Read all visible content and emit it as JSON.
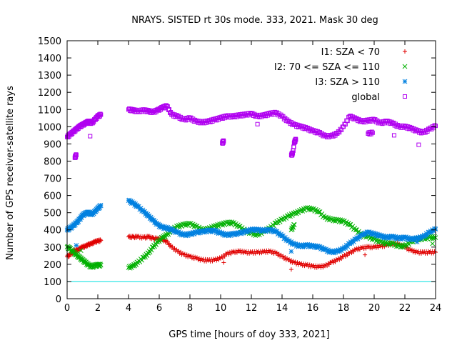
{
  "chart_data": {
    "type": "scatter",
    "title": "NRAYS. SISTED rt 30s mode. 333, 2021. Mask 30 deg",
    "xlabel": "GPS time [hours of doy 333, 2021]",
    "ylabel": "Number of GPS receiver-satellite rays",
    "xlim": [
      0,
      24
    ],
    "ylim": [
      0,
      1500
    ],
    "xticks": [
      0,
      2,
      4,
      6,
      8,
      10,
      12,
      14,
      16,
      18,
      20,
      22,
      24
    ],
    "yticks": [
      0,
      100,
      200,
      300,
      400,
      500,
      600,
      700,
      800,
      900,
      1000,
      1100,
      1200,
      1300,
      1400,
      1500
    ],
    "legend_position": "top-right",
    "reference_line": {
      "y": 100,
      "color": "#00e0e0"
    },
    "series": [
      {
        "name": "I1: SZA < 70",
        "marker": "plus",
        "color": "#e00000",
        "points": [
          [
            0.0,
            245
          ],
          [
            0.2,
            255
          ],
          [
            0.4,
            275
          ],
          [
            0.6,
            280
          ],
          [
            0.8,
            290
          ],
          [
            1.0,
            300
          ],
          [
            1.2,
            305
          ],
          [
            1.4,
            315
          ],
          [
            1.6,
            320
          ],
          [
            1.8,
            330
          ],
          [
            2.0,
            335
          ],
          [
            2.2,
            338
          ],
          [
            4.0,
            360
          ],
          [
            4.3,
            358
          ],
          [
            4.6,
            360
          ],
          [
            5.0,
            355
          ],
          [
            5.3,
            360
          ],
          [
            5.6,
            350
          ],
          [
            5.9,
            348
          ],
          [
            6.2,
            345
          ],
          [
            6.5,
            330
          ],
          [
            6.8,
            300
          ],
          [
            7.2,
            275
          ],
          [
            7.6,
            255
          ],
          [
            8.0,
            245
          ],
          [
            8.4,
            235
          ],
          [
            8.8,
            225
          ],
          [
            9.2,
            222
          ],
          [
            9.6,
            225
          ],
          [
            10.0,
            235
          ],
          [
            10.4,
            260
          ],
          [
            10.8,
            270
          ],
          [
            11.2,
            275
          ],
          [
            11.6,
            270
          ],
          [
            12.0,
            268
          ],
          [
            12.4,
            270
          ],
          [
            12.8,
            272
          ],
          [
            13.2,
            275
          ],
          [
            13.6,
            265
          ],
          [
            14.0,
            245
          ],
          [
            14.4,
            225
          ],
          [
            14.8,
            210
          ],
          [
            15.2,
            200
          ],
          [
            15.6,
            195
          ],
          [
            16.0,
            188
          ],
          [
            16.4,
            185
          ],
          [
            16.8,
            190
          ],
          [
            17.2,
            210
          ],
          [
            17.6,
            225
          ],
          [
            18.0,
            245
          ],
          [
            18.4,
            265
          ],
          [
            18.8,
            285
          ],
          [
            19.2,
            295
          ],
          [
            19.6,
            300
          ],
          [
            20.0,
            300
          ],
          [
            20.4,
            305
          ],
          [
            20.8,
            310
          ],
          [
            21.2,
            320
          ],
          [
            21.6,
            315
          ],
          [
            22.0,
            300
          ],
          [
            22.4,
            280
          ],
          [
            22.8,
            270
          ],
          [
            23.2,
            268
          ],
          [
            23.6,
            270
          ],
          [
            24.0,
            270
          ],
          [
            10.2,
            210
          ],
          [
            14.6,
            170
          ],
          [
            19.4,
            255
          ],
          [
            21.5,
            345
          ]
        ]
      },
      {
        "name": "I2: 70 <= SZA <= 110",
        "marker": "cross",
        "color": "#00b000",
        "points": [
          [
            0.0,
            300
          ],
          [
            0.2,
            290
          ],
          [
            0.4,
            270
          ],
          [
            0.6,
            255
          ],
          [
            0.8,
            240
          ],
          [
            1.0,
            225
          ],
          [
            1.2,
            210
          ],
          [
            1.4,
            195
          ],
          [
            1.6,
            185
          ],
          [
            1.8,
            192
          ],
          [
            2.0,
            195
          ],
          [
            2.2,
            195
          ],
          [
            4.0,
            180
          ],
          [
            4.3,
            190
          ],
          [
            4.6,
            210
          ],
          [
            5.0,
            240
          ],
          [
            5.3,
            265
          ],
          [
            5.6,
            300
          ],
          [
            5.9,
            330
          ],
          [
            6.2,
            355
          ],
          [
            6.5,
            370
          ],
          [
            6.8,
            400
          ],
          [
            7.2,
            420
          ],
          [
            7.6,
            430
          ],
          [
            8.0,
            435
          ],
          [
            8.4,
            420
          ],
          [
            8.8,
            400
          ],
          [
            9.2,
            405
          ],
          [
            9.6,
            420
          ],
          [
            10.0,
            430
          ],
          [
            10.4,
            440
          ],
          [
            10.8,
            440
          ],
          [
            11.2,
            420
          ],
          [
            11.6,
            395
          ],
          [
            12.0,
            380
          ],
          [
            12.4,
            370
          ],
          [
            12.8,
            390
          ],
          [
            13.2,
            410
          ],
          [
            13.6,
            440
          ],
          [
            14.0,
            460
          ],
          [
            14.4,
            480
          ],
          [
            14.8,
            495
          ],
          [
            15.2,
            510
          ],
          [
            15.6,
            525
          ],
          [
            16.0,
            520
          ],
          [
            16.4,
            505
          ],
          [
            16.8,
            470
          ],
          [
            17.2,
            460
          ],
          [
            17.6,
            455
          ],
          [
            18.0,
            450
          ],
          [
            18.4,
            430
          ],
          [
            18.8,
            400
          ],
          [
            19.2,
            370
          ],
          [
            19.6,
            360
          ],
          [
            20.0,
            345
          ],
          [
            20.4,
            330
          ],
          [
            20.8,
            320
          ],
          [
            21.2,
            320
          ],
          [
            21.6,
            305
          ],
          [
            22.0,
            305
          ],
          [
            22.4,
            330
          ],
          [
            22.8,
            345
          ],
          [
            23.2,
            350
          ],
          [
            23.6,
            355
          ],
          [
            24.0,
            355
          ],
          [
            0.9,
            280
          ],
          [
            14.6,
            400
          ],
          [
            14.8,
            430
          ],
          [
            23.8,
            320
          ]
        ]
      },
      {
        "name": "I3: SZA > 110",
        "marker": "star",
        "color": "#0080e0",
        "points": [
          [
            0.0,
            400
          ],
          [
            0.2,
            410
          ],
          [
            0.4,
            425
          ],
          [
            0.6,
            440
          ],
          [
            0.8,
            460
          ],
          [
            1.0,
            485
          ],
          [
            1.2,
            495
          ],
          [
            1.4,
            500
          ],
          [
            1.6,
            490
          ],
          [
            1.8,
            505
          ],
          [
            2.0,
            525
          ],
          [
            2.2,
            540
          ],
          [
            4.0,
            570
          ],
          [
            4.3,
            555
          ],
          [
            4.6,
            535
          ],
          [
            5.0,
            505
          ],
          [
            5.3,
            480
          ],
          [
            5.6,
            455
          ],
          [
            5.9,
            430
          ],
          [
            6.2,
            415
          ],
          [
            6.5,
            410
          ],
          [
            6.8,
            400
          ],
          [
            7.2,
            385
          ],
          [
            7.6,
            370
          ],
          [
            8.0,
            375
          ],
          [
            8.4,
            385
          ],
          [
            8.8,
            390
          ],
          [
            9.2,
            395
          ],
          [
            9.6,
            395
          ],
          [
            10.0,
            380
          ],
          [
            10.4,
            370
          ],
          [
            10.8,
            375
          ],
          [
            11.2,
            380
          ],
          [
            11.6,
            390
          ],
          [
            12.0,
            400
          ],
          [
            12.4,
            400
          ],
          [
            12.8,
            395
          ],
          [
            13.2,
            400
          ],
          [
            13.6,
            390
          ],
          [
            14.0,
            365
          ],
          [
            14.4,
            335
          ],
          [
            14.8,
            315
          ],
          [
            15.2,
            305
          ],
          [
            15.6,
            310
          ],
          [
            16.0,
            305
          ],
          [
            16.4,
            300
          ],
          [
            16.8,
            285
          ],
          [
            17.2,
            270
          ],
          [
            17.6,
            275
          ],
          [
            18.0,
            290
          ],
          [
            18.4,
            320
          ],
          [
            18.8,
            345
          ],
          [
            19.2,
            370
          ],
          [
            19.6,
            385
          ],
          [
            20.0,
            375
          ],
          [
            20.4,
            365
          ],
          [
            20.8,
            355
          ],
          [
            21.2,
            360
          ],
          [
            21.6,
            350
          ],
          [
            22.0,
            355
          ],
          [
            22.4,
            345
          ],
          [
            22.8,
            350
          ],
          [
            23.2,
            360
          ],
          [
            23.6,
            385
          ],
          [
            24.0,
            405
          ],
          [
            0.6,
            310
          ],
          [
            14.6,
            275
          ],
          [
            22.8,
            330
          ]
        ]
      },
      {
        "name": "global",
        "marker": "square",
        "color": "#b000f0",
        "points": [
          [
            0.0,
            940
          ],
          [
            0.2,
            955
          ],
          [
            0.4,
            970
          ],
          [
            0.6,
            985
          ],
          [
            0.8,
            1000
          ],
          [
            1.0,
            1010
          ],
          [
            1.2,
            1020
          ],
          [
            1.4,
            1030
          ],
          [
            1.6,
            1020
          ],
          [
            1.8,
            1040
          ],
          [
            2.0,
            1060
          ],
          [
            2.2,
            1070
          ],
          [
            4.0,
            1100
          ],
          [
            4.3,
            1095
          ],
          [
            4.6,
            1090
          ],
          [
            5.0,
            1095
          ],
          [
            5.3,
            1090
          ],
          [
            5.6,
            1085
          ],
          [
            5.9,
            1095
          ],
          [
            6.2,
            1110
          ],
          [
            6.5,
            1120
          ],
          [
            6.8,
            1070
          ],
          [
            7.2,
            1060
          ],
          [
            7.6,
            1040
          ],
          [
            8.0,
            1050
          ],
          [
            8.4,
            1030
          ],
          [
            8.8,
            1025
          ],
          [
            9.2,
            1030
          ],
          [
            9.6,
            1040
          ],
          [
            10.0,
            1050
          ],
          [
            10.4,
            1060
          ],
          [
            10.8,
            1060
          ],
          [
            11.2,
            1065
          ],
          [
            11.6,
            1070
          ],
          [
            12.0,
            1075
          ],
          [
            12.4,
            1060
          ],
          [
            12.8,
            1065
          ],
          [
            13.2,
            1075
          ],
          [
            13.6,
            1080
          ],
          [
            14.0,
            1060
          ],
          [
            14.4,
            1030
          ],
          [
            14.8,
            1010
          ],
          [
            15.2,
            1000
          ],
          [
            15.6,
            990
          ],
          [
            16.0,
            975
          ],
          [
            16.4,
            965
          ],
          [
            16.8,
            945
          ],
          [
            17.2,
            945
          ],
          [
            17.6,
            960
          ],
          [
            18.0,
            1000
          ],
          [
            18.4,
            1060
          ],
          [
            18.8,
            1045
          ],
          [
            19.2,
            1030
          ],
          [
            19.6,
            1035
          ],
          [
            20.0,
            1040
          ],
          [
            20.4,
            1020
          ],
          [
            20.8,
            1030
          ],
          [
            21.2,
            1020
          ],
          [
            21.6,
            1000
          ],
          [
            22.0,
            1000
          ],
          [
            22.4,
            990
          ],
          [
            22.8,
            975
          ],
          [
            23.2,
            965
          ],
          [
            23.6,
            985
          ],
          [
            24.0,
            1005
          ],
          [
            0.5,
            820
          ],
          [
            0.6,
            835
          ],
          [
            1.5,
            945
          ],
          [
            10.1,
            905
          ],
          [
            10.2,
            915
          ],
          [
            12.4,
            1015
          ],
          [
            14.6,
            835
          ],
          [
            14.7,
            845
          ],
          [
            14.8,
            910
          ],
          [
            14.9,
            925
          ],
          [
            19.6,
            960
          ],
          [
            19.9,
            965
          ],
          [
            21.3,
            950
          ],
          [
            22.9,
            895
          ]
        ]
      }
    ]
  }
}
